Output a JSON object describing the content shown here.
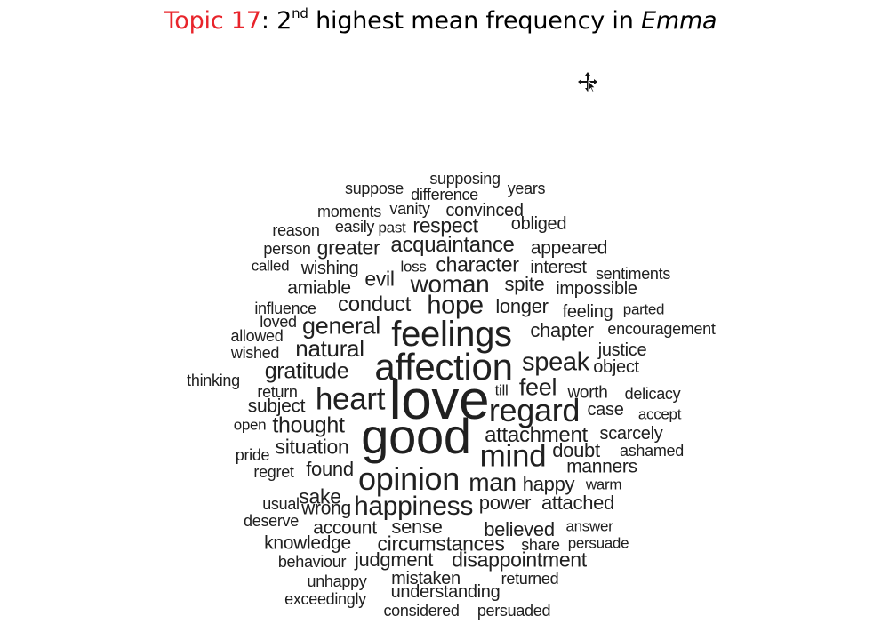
{
  "title": {
    "topic_label": "Topic 17",
    "separator": ": ",
    "rank_number": "2",
    "rank_suffix": "nd",
    "rest": " highest mean frequency in ",
    "book": "Emma"
  },
  "cursor_icon": "move-cursor-icon",
  "colors": {
    "topic_label": "#e8242b",
    "word": "#202020"
  },
  "words": [
    {
      "text": "supposing",
      "weight": 18
    },
    {
      "text": "suppose",
      "weight": 18
    },
    {
      "text": "difference",
      "weight": 18
    },
    {
      "text": "years",
      "weight": 18
    },
    {
      "text": "moments",
      "weight": 18
    },
    {
      "text": "vanity",
      "weight": 18
    },
    {
      "text": "convinced",
      "weight": 20
    },
    {
      "text": "reason",
      "weight": 18
    },
    {
      "text": "easily",
      "weight": 18
    },
    {
      "text": "past",
      "weight": 17
    },
    {
      "text": "respect",
      "weight": 23
    },
    {
      "text": "obliged",
      "weight": 20
    },
    {
      "text": "person",
      "weight": 18
    },
    {
      "text": "greater",
      "weight": 23
    },
    {
      "text": "acquaintance",
      "weight": 24
    },
    {
      "text": "appeared",
      "weight": 21
    },
    {
      "text": "called",
      "weight": 17
    },
    {
      "text": "wishing",
      "weight": 20
    },
    {
      "text": "loss",
      "weight": 17
    },
    {
      "text": "character",
      "weight": 23
    },
    {
      "text": "interest",
      "weight": 20
    },
    {
      "text": "sentiments",
      "weight": 18
    },
    {
      "text": "amiable",
      "weight": 21
    },
    {
      "text": "evil",
      "weight": 23
    },
    {
      "text": "woman",
      "weight": 28
    },
    {
      "text": "spite",
      "weight": 22
    },
    {
      "text": "impossible",
      "weight": 20
    },
    {
      "text": "influence",
      "weight": 18
    },
    {
      "text": "conduct",
      "weight": 24
    },
    {
      "text": "hope",
      "weight": 29
    },
    {
      "text": "longer",
      "weight": 22
    },
    {
      "text": "feeling",
      "weight": 20
    },
    {
      "text": "parted",
      "weight": 17
    },
    {
      "text": "loved",
      "weight": 18
    },
    {
      "text": "general",
      "weight": 27
    },
    {
      "text": "feelings",
      "weight": 40
    },
    {
      "text": "chapter",
      "weight": 22
    },
    {
      "text": "encouragement",
      "weight": 18
    },
    {
      "text": "allowed",
      "weight": 18
    },
    {
      "text": "natural",
      "weight": 26
    },
    {
      "text": "wished",
      "weight": 18
    },
    {
      "text": "justice",
      "weight": 20
    },
    {
      "text": "affection",
      "weight": 42
    },
    {
      "text": "speak",
      "weight": 29
    },
    {
      "text": "object",
      "weight": 20
    },
    {
      "text": "gratitude",
      "weight": 25
    },
    {
      "text": "thinking",
      "weight": 18
    },
    {
      "text": "return",
      "weight": 18
    },
    {
      "text": "till",
      "weight": 17
    },
    {
      "text": "feel",
      "weight": 27
    },
    {
      "text": "worth",
      "weight": 19
    },
    {
      "text": "delicacy",
      "weight": 18
    },
    {
      "text": "heart",
      "weight": 35
    },
    {
      "text": "love",
      "weight": 62
    },
    {
      "text": "subject",
      "weight": 21
    },
    {
      "text": "regard",
      "weight": 36
    },
    {
      "text": "case",
      "weight": 20
    },
    {
      "text": "accept",
      "weight": 17
    },
    {
      "text": "thought",
      "weight": 25
    },
    {
      "text": "open",
      "weight": 17
    },
    {
      "text": "good",
      "weight": 56
    },
    {
      "text": "attachment",
      "weight": 24
    },
    {
      "text": "scarcely",
      "weight": 20
    },
    {
      "text": "pride",
      "weight": 18
    },
    {
      "text": "situation",
      "weight": 23
    },
    {
      "text": "mind",
      "weight": 35
    },
    {
      "text": "doubt",
      "weight": 22
    },
    {
      "text": "ashamed",
      "weight": 18
    },
    {
      "text": "regret",
      "weight": 18
    },
    {
      "text": "found",
      "weight": 22
    },
    {
      "text": "manners",
      "weight": 21
    },
    {
      "text": "opinion",
      "weight": 36
    },
    {
      "text": "man",
      "weight": 28
    },
    {
      "text": "happy",
      "weight": 22
    },
    {
      "text": "warm",
      "weight": 17
    },
    {
      "text": "sake",
      "weight": 23
    },
    {
      "text": "usual",
      "weight": 18
    },
    {
      "text": "wrong",
      "weight": 21
    },
    {
      "text": "happiness",
      "weight": 30
    },
    {
      "text": "power",
      "weight": 22
    },
    {
      "text": "attached",
      "weight": 22
    },
    {
      "text": "deserve",
      "weight": 18
    },
    {
      "text": "account",
      "weight": 21
    },
    {
      "text": "sense",
      "weight": 22
    },
    {
      "text": "believed",
      "weight": 22
    },
    {
      "text": "answer",
      "weight": 17
    },
    {
      "text": "knowledge",
      "weight": 21
    },
    {
      "text": "circumstances",
      "weight": 23
    },
    {
      "text": "share",
      "weight": 18
    },
    {
      "text": "persuade",
      "weight": 17
    },
    {
      "text": "behaviour",
      "weight": 18
    },
    {
      "text": "judgment",
      "weight": 22
    },
    {
      "text": "disappointment",
      "weight": 23
    },
    {
      "text": "mistaken",
      "weight": 20
    },
    {
      "text": "unhappy",
      "weight": 18
    },
    {
      "text": "returned",
      "weight": 18
    },
    {
      "text": "understanding",
      "weight": 20
    },
    {
      "text": "exceedingly",
      "weight": 18
    },
    {
      "text": "considered",
      "weight": 18
    },
    {
      "text": "persuaded",
      "weight": 18
    }
  ]
}
